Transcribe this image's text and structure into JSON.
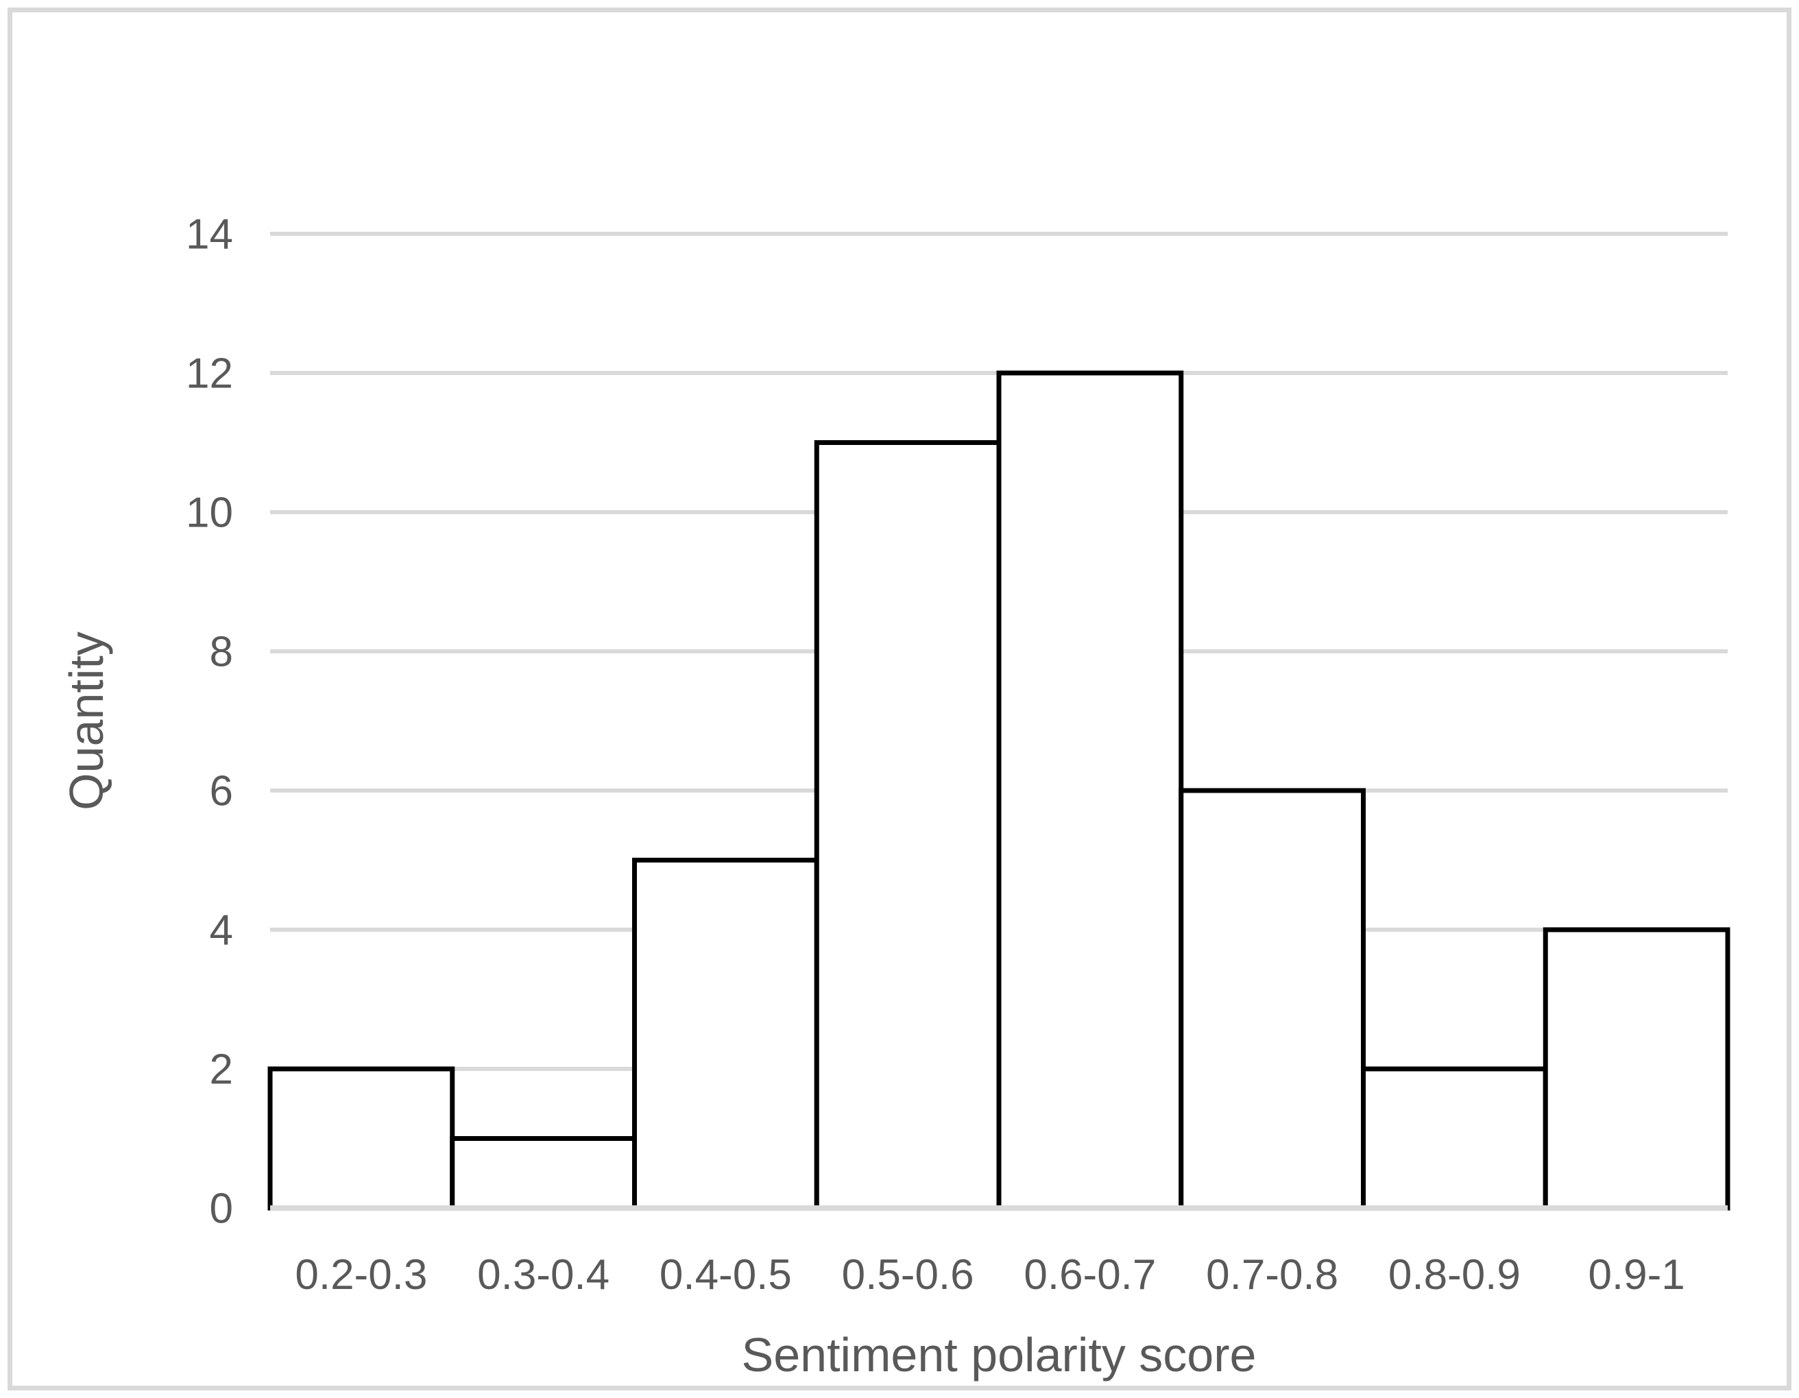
{
  "chart_data": {
    "type": "bar",
    "subtype": "histogram",
    "title": "",
    "xlabel": "Sentiment polarity score",
    "ylabel": "Quantity",
    "categories": [
      "0.2-0.3",
      "0.3-0.4",
      "0.4-0.5",
      "0.5-0.6",
      "0.6-0.7",
      "0.7-0.8",
      "0.8-0.9",
      "0.9-1"
    ],
    "values": [
      2,
      1,
      5,
      11,
      12,
      6,
      2,
      4
    ],
    "ylim": [
      0,
      14
    ],
    "ytick_step": 2,
    "ytick_labels": [
      "0",
      "2",
      "4",
      "6",
      "8",
      "10",
      "12",
      "14"
    ],
    "grid": "horizontal-only",
    "legend": "none",
    "bar_gap": 0,
    "colors": {
      "background": "#ffffff",
      "bar_fill": "#ffffff",
      "bar_stroke": "#000000",
      "gridline": "#d9d9d9",
      "axis_baseline": "#d9d9d9",
      "frame_border": "#d9d9d9",
      "label_text": "#595959"
    }
  }
}
